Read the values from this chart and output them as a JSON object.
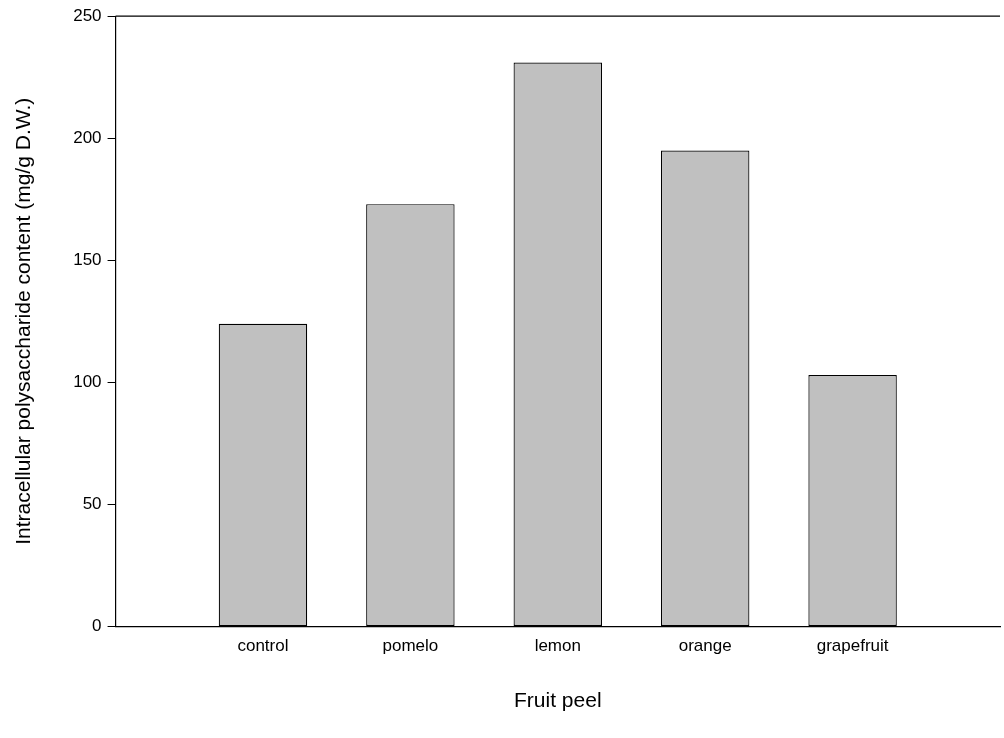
{
  "chart_data": {
    "type": "bar",
    "categories": [
      "control",
      "pomelo",
      "lemon",
      "orange",
      "grapefruit"
    ],
    "values": [
      124,
      173,
      231,
      195,
      103
    ],
    "color": "#c0c0c0",
    "xlabel": "Fruit peel",
    "ylabel": "Intracellular polysaccharide content (mg/g D.W.)",
    "ylim": [
      0,
      250
    ],
    "yticks": [
      0,
      50,
      100,
      150,
      200,
      250
    ],
    "grid": false,
    "legend": false
  }
}
